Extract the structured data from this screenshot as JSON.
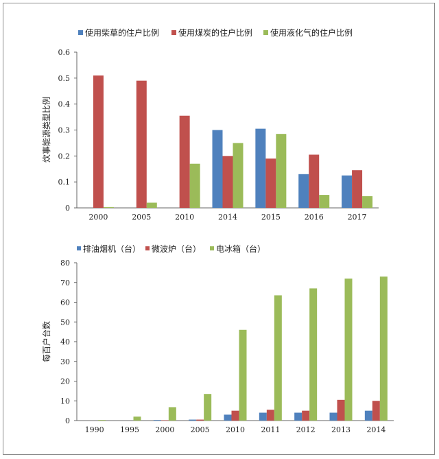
{
  "colors": {
    "blue": "#4f81bd",
    "red": "#c0504d",
    "green": "#9bbb59"
  },
  "chart_data": [
    {
      "type": "bar",
      "categories": [
        "2000",
        "2005",
        "2010",
        "2014",
        "2015",
        "2016",
        "2017"
      ],
      "series": [
        {
          "name": "使用柴草的住户比例",
          "values": [
            0,
            0,
            0,
            0.3,
            0.305,
            0.13,
            0.125
          ]
        },
        {
          "name": "使用煤炭的住户比例",
          "values": [
            0.51,
            0.49,
            0.355,
            0.2,
            0.19,
            0.205,
            0.145
          ]
        },
        {
          "name": "使用液化气的住户比例",
          "values": [
            0.003,
            0.02,
            0.17,
            0.25,
            0.285,
            0.05,
            0.045
          ]
        }
      ],
      "xlabel": "",
      "ylabel": "炊事能源类型比例",
      "ylim": [
        0,
        0.6
      ],
      "yticks": [
        "0",
        "0.1",
        "0.2",
        "0.3",
        "0.4",
        "0.5",
        "0.6"
      ],
      "legend": "top",
      "grid": false
    },
    {
      "type": "bar",
      "categories": [
        "1990",
        "1995",
        "2000",
        "2005",
        "2010",
        "2011",
        "2012",
        "2013",
        "2014"
      ],
      "series": [
        {
          "name": "排油烟机（台）",
          "values": [
            0,
            0,
            0.3,
            0.5,
            3.0,
            4.0,
            4.0,
            4.0,
            5.0
          ]
        },
        {
          "name": "微波炉（台）",
          "values": [
            0,
            0,
            0.2,
            0.5,
            5.0,
            5.5,
            5.0,
            10.5,
            10.0
          ]
        },
        {
          "name": "电冰箱（台）",
          "values": [
            0.3,
            2.0,
            6.8,
            13.5,
            46.0,
            63.5,
            67.0,
            72.0,
            73.0
          ]
        }
      ],
      "xlabel": "",
      "ylabel": "每百户台数",
      "ylim": [
        0,
        80
      ],
      "yticks": [
        "0",
        "10",
        "20",
        "30",
        "40",
        "50",
        "60",
        "70",
        "80"
      ],
      "legend": "top",
      "grid": false
    }
  ]
}
